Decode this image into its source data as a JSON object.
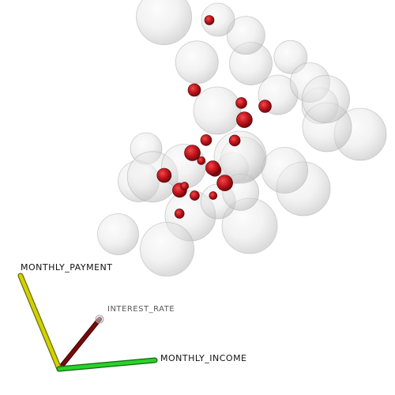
{
  "chart_data": {
    "type": "scatter",
    "style": "3d-isosurface-density",
    "axes": {
      "x": "MONTHLY_INCOME",
      "y": "MONTHLY_PAYMENT",
      "z": "INTEREST_RATE"
    },
    "axis_colors": {
      "x": "#22cc22",
      "y": "#c8c800",
      "z": "#6b0000"
    },
    "series": [
      {
        "role": "outer-surface",
        "color": "#d8d8d8",
        "points": [
          [
            0.45,
            0.82,
            0.5
          ],
          [
            0.3,
            0.78,
            0.4
          ],
          [
            0.2,
            0.48,
            0.3
          ],
          [
            0.6,
            0.72,
            0.6
          ],
          [
            0.35,
            0.5,
            0.2
          ],
          [
            0.15,
            0.35,
            0.1
          ],
          [
            0.5,
            0.6,
            0.8
          ],
          [
            0.7,
            0.55,
            0.7
          ],
          [
            0.8,
            0.5,
            0.5
          ],
          [
            0.4,
            0.35,
            0.5
          ],
          [
            0.25,
            0.25,
            0.4
          ],
          [
            0.55,
            0.38,
            0.3
          ],
          [
            0.65,
            0.4,
            0.5
          ],
          [
            0.3,
            0.6,
            0.7
          ],
          [
            0.45,
            0.45,
            0.6
          ],
          [
            0.1,
            0.55,
            0.5
          ],
          [
            0.35,
            0.7,
            0.9
          ],
          [
            0.75,
            0.65,
            0.4
          ],
          [
            0.5,
            0.25,
            0.6
          ],
          [
            0.2,
            0.3,
            0.8
          ],
          [
            0.6,
            0.5,
            0.1
          ],
          [
            0.85,
            0.6,
            0.3
          ],
          [
            0.05,
            0.45,
            0.6
          ],
          [
            0.4,
            0.9,
            0.3
          ],
          [
            0.22,
            0.95,
            0.2
          ],
          [
            0.6,
            0.3,
            0.9
          ],
          [
            0.9,
            0.45,
            0.6
          ],
          [
            0.3,
            0.4,
            0.95
          ]
        ]
      },
      {
        "role": "inner-core",
        "color": "#c0141c",
        "points": [
          [
            0.32,
            0.48,
            0.5
          ],
          [
            0.28,
            0.42,
            0.45
          ],
          [
            0.36,
            0.44,
            0.55
          ],
          [
            0.4,
            0.46,
            0.4
          ],
          [
            0.25,
            0.5,
            0.6
          ],
          [
            0.3,
            0.38,
            0.52
          ],
          [
            0.45,
            0.52,
            0.48
          ],
          [
            0.38,
            0.55,
            0.35
          ],
          [
            0.22,
            0.4,
            0.58
          ],
          [
            0.34,
            0.36,
            0.62
          ],
          [
            0.42,
            0.4,
            0.5
          ],
          [
            0.5,
            0.58,
            0.42
          ],
          [
            0.18,
            0.46,
            0.5
          ],
          [
            0.26,
            0.34,
            0.48
          ],
          [
            0.44,
            0.62,
            0.55
          ],
          [
            0.55,
            0.6,
            0.5
          ],
          [
            0.3,
            0.7,
            0.4
          ],
          [
            0.35,
            0.9,
            0.35
          ]
        ]
      }
    ]
  }
}
